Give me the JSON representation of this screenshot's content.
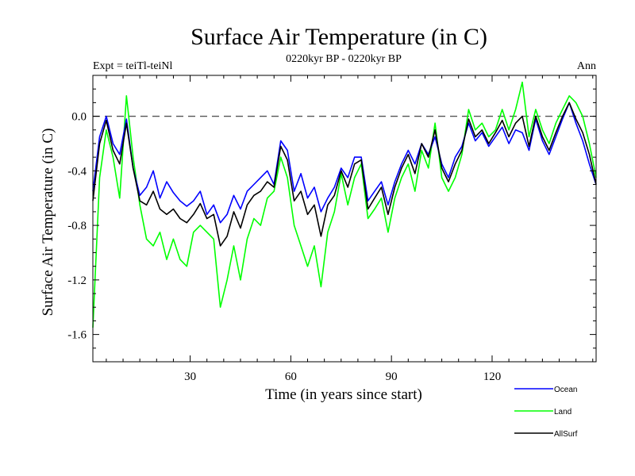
{
  "chart_data": {
    "type": "line",
    "title": "Surface Air Temperature (in C)",
    "subtitle": "0220kyr BP - 0220kyr BP",
    "left_label": "Expt = teiTl-teiNl",
    "right_label": "Ann",
    "xlabel": "Time (in years since start)",
    "ylabel": "Surface Air Temperature (in C)",
    "xlim": [
      1,
      151
    ],
    "ylim": [
      -1.8,
      0.3
    ],
    "xticks": [
      30,
      60,
      90,
      120
    ],
    "xtick_labels": [
      "30",
      "60",
      "90",
      "120"
    ],
    "yticks": [
      0.0,
      -0.4,
      -0.8,
      -1.2,
      -1.6
    ],
    "ytick_labels": [
      "0.0",
      "-0.4",
      "-0.8",
      "-1.2",
      "-1.6"
    ],
    "reference_line": 0.0,
    "legend_position": "bottom-right",
    "series": [
      {
        "name": "Ocean",
        "color": "#0000ff",
        "x": [
          1,
          3,
          5,
          7,
          9,
          11,
          13,
          15,
          17,
          19,
          21,
          23,
          25,
          27,
          29,
          31,
          33,
          35,
          37,
          39,
          41,
          43,
          45,
          47,
          49,
          51,
          53,
          55,
          57,
          59,
          61,
          63,
          65,
          67,
          69,
          71,
          73,
          75,
          77,
          79,
          81,
          83,
          85,
          87,
          89,
          91,
          93,
          95,
          97,
          99,
          101,
          103,
          105,
          107,
          109,
          111,
          113,
          115,
          117,
          119,
          121,
          123,
          125,
          127,
          129,
          131,
          133,
          135,
          137,
          139,
          141,
          143,
          145,
          147,
          149,
          151
        ],
        "values": [
          -0.55,
          -0.15,
          0.0,
          -0.2,
          -0.28,
          -0.02,
          -0.38,
          -0.58,
          -0.52,
          -0.4,
          -0.6,
          -0.48,
          -0.56,
          -0.62,
          -0.66,
          -0.62,
          -0.55,
          -0.72,
          -0.65,
          -0.78,
          -0.72,
          -0.58,
          -0.68,
          -0.55,
          -0.5,
          -0.45,
          -0.4,
          -0.5,
          -0.18,
          -0.25,
          -0.55,
          -0.42,
          -0.6,
          -0.52,
          -0.7,
          -0.6,
          -0.52,
          -0.38,
          -0.45,
          -0.3,
          -0.3,
          -0.62,
          -0.55,
          -0.48,
          -0.65,
          -0.48,
          -0.35,
          -0.25,
          -0.35,
          -0.2,
          -0.28,
          -0.15,
          -0.35,
          -0.45,
          -0.3,
          -0.22,
          -0.05,
          -0.18,
          -0.12,
          -0.22,
          -0.15,
          -0.08,
          -0.2,
          -0.1,
          -0.12,
          -0.25,
          -0.02,
          -0.18,
          -0.28,
          -0.15,
          -0.02,
          0.1,
          -0.05,
          -0.18,
          -0.35,
          -0.5
        ]
      },
      {
        "name": "Land",
        "color": "#00ff00",
        "x": [
          1,
          3,
          5,
          7,
          9,
          11,
          13,
          15,
          17,
          19,
          21,
          23,
          25,
          27,
          29,
          31,
          33,
          35,
          37,
          39,
          41,
          43,
          45,
          47,
          49,
          51,
          53,
          55,
          57,
          59,
          61,
          63,
          65,
          67,
          69,
          71,
          73,
          75,
          77,
          79,
          81,
          83,
          85,
          87,
          89,
          91,
          93,
          95,
          97,
          99,
          101,
          103,
          105,
          107,
          109,
          111,
          113,
          115,
          117,
          119,
          121,
          123,
          125,
          127,
          129,
          131,
          133,
          135,
          137,
          139,
          141,
          143,
          145,
          147,
          149,
          151
        ],
        "values": [
          -1.55,
          -0.45,
          -0.1,
          -0.3,
          -0.6,
          0.15,
          -0.3,
          -0.65,
          -0.9,
          -0.95,
          -0.85,
          -1.05,
          -0.9,
          -1.05,
          -1.1,
          -0.85,
          -0.8,
          -0.85,
          -0.9,
          -1.4,
          -1.2,
          -0.95,
          -1.2,
          -0.9,
          -0.75,
          -0.8,
          -0.6,
          -0.55,
          -0.3,
          -0.45,
          -0.8,
          -0.95,
          -1.1,
          -0.95,
          -1.25,
          -0.85,
          -0.7,
          -0.42,
          -0.65,
          -0.45,
          -0.35,
          -0.75,
          -0.68,
          -0.6,
          -0.85,
          -0.6,
          -0.45,
          -0.35,
          -0.55,
          -0.25,
          -0.38,
          -0.05,
          -0.45,
          -0.55,
          -0.45,
          -0.28,
          0.05,
          -0.1,
          -0.05,
          -0.15,
          -0.1,
          0.05,
          -0.1,
          0.05,
          0.25,
          -0.15,
          0.05,
          -0.1,
          -0.2,
          -0.05,
          0.05,
          0.15,
          0.1,
          0.0,
          -0.2,
          -0.45
        ]
      },
      {
        "name": "AllSurf",
        "color": "#000000",
        "x": [
          1,
          3,
          5,
          7,
          9,
          11,
          13,
          15,
          17,
          19,
          21,
          23,
          25,
          27,
          29,
          31,
          33,
          35,
          37,
          39,
          41,
          43,
          45,
          47,
          49,
          51,
          53,
          55,
          57,
          59,
          61,
          63,
          65,
          67,
          69,
          71,
          73,
          75,
          77,
          79,
          81,
          83,
          85,
          87,
          89,
          91,
          93,
          95,
          97,
          99,
          101,
          103,
          105,
          107,
          109,
          111,
          113,
          115,
          117,
          119,
          121,
          123,
          125,
          127,
          129,
          131,
          133,
          135,
          137,
          139,
          141,
          143,
          145,
          147,
          149,
          151
        ],
        "values": [
          -0.62,
          -0.2,
          -0.03,
          -0.25,
          -0.35,
          -0.05,
          -0.38,
          -0.62,
          -0.65,
          -0.55,
          -0.68,
          -0.72,
          -0.68,
          -0.75,
          -0.78,
          -0.72,
          -0.64,
          -0.75,
          -0.72,
          -0.95,
          -0.88,
          -0.7,
          -0.82,
          -0.65,
          -0.58,
          -0.55,
          -0.48,
          -0.52,
          -0.22,
          -0.32,
          -0.62,
          -0.55,
          -0.72,
          -0.65,
          -0.88,
          -0.65,
          -0.58,
          -0.4,
          -0.52,
          -0.35,
          -0.32,
          -0.68,
          -0.6,
          -0.52,
          -0.72,
          -0.52,
          -0.38,
          -0.28,
          -0.42,
          -0.2,
          -0.3,
          -0.1,
          -0.38,
          -0.48,
          -0.35,
          -0.25,
          -0.02,
          -0.15,
          -0.1,
          -0.2,
          -0.12,
          -0.03,
          -0.15,
          -0.05,
          0.0,
          -0.22,
          0.0,
          -0.15,
          -0.25,
          -0.12,
          0.0,
          0.1,
          -0.02,
          -0.12,
          -0.28,
          -0.5
        ]
      }
    ]
  }
}
